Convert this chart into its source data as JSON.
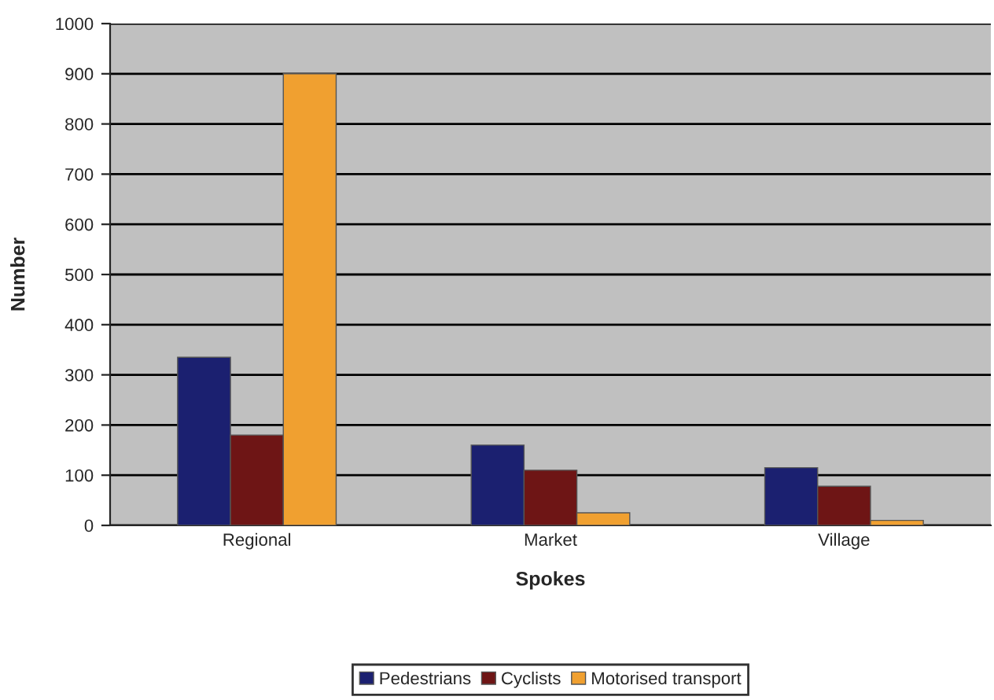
{
  "chart_data": {
    "type": "bar",
    "xlabel": "Spokes",
    "ylabel": "Number",
    "categories": [
      "Regional",
      "Market",
      "Village"
    ],
    "series": [
      {
        "name": "Pedestrians",
        "color": "#1b2070",
        "values": [
          335,
          160,
          115
        ]
      },
      {
        "name": "Cyclists",
        "color": "#6e1515",
        "values": [
          180,
          110,
          78
        ]
      },
      {
        "name": "Motorised transport",
        "color": "#f0a030",
        "values": [
          900,
          25,
          10
        ]
      }
    ],
    "ylim": [
      0,
      1000
    ],
    "yticks": [
      0,
      100,
      200,
      300,
      400,
      500,
      600,
      700,
      800,
      900,
      1000
    ],
    "grid": "y",
    "legend": "bottom"
  }
}
